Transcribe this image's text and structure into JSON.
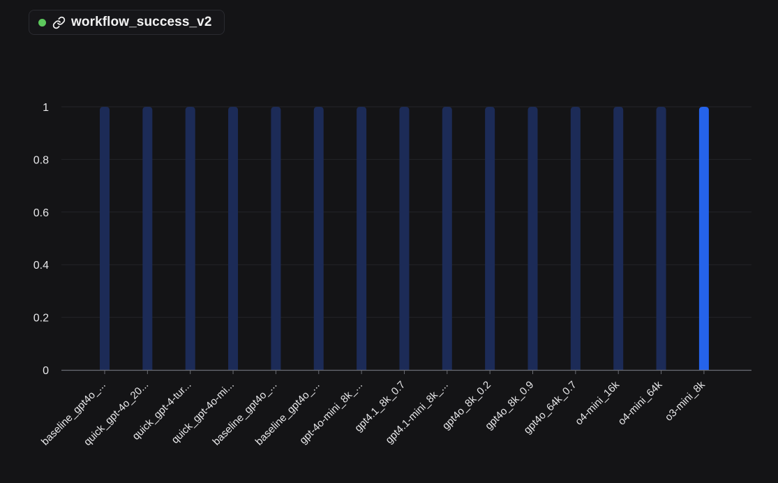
{
  "header": {
    "title": "workflow_success_v2",
    "status_color": "#5cc85c",
    "icon": "link-icon"
  },
  "chart_data": {
    "type": "bar",
    "title": "workflow_success_v2",
    "xlabel": "",
    "ylabel": "",
    "ylim": [
      0,
      1
    ],
    "yticks": [
      0,
      0.2,
      0.4,
      0.6,
      0.8,
      1
    ],
    "ytick_labels": [
      "0",
      "0.2",
      "0.4",
      "0.6",
      "0.8",
      "1"
    ],
    "grid": true,
    "categories": [
      "baseline_gpt4o_...",
      "quick_gpt-4o_20...",
      "quick_gpt-4-tur...",
      "quick_gpt-4o-mi...",
      "baseline_gpt4o_...",
      "baseline_gpt4o_...",
      "gpt-4o-mini_8k_...",
      "gpt4.1_8k_0.7",
      "gpt4.1-mini_8k_...",
      "gpt4o_8k_0.2",
      "gpt4o_8k_0.9",
      "gpt4o_64k_0.7",
      "o4-mini_16k",
      "o4-mini_64k",
      "o3-mini_8k"
    ],
    "values": [
      1,
      1,
      1,
      1,
      1,
      1,
      1,
      1,
      1,
      1,
      1,
      1,
      1,
      1,
      1
    ],
    "highlighted_index": 14,
    "colors": {
      "bar": "#1c2b57",
      "bar_highlight": "#2563eb",
      "grid": "#232429",
      "axis": "#6b6d75",
      "text": "#e8e8ea"
    }
  }
}
